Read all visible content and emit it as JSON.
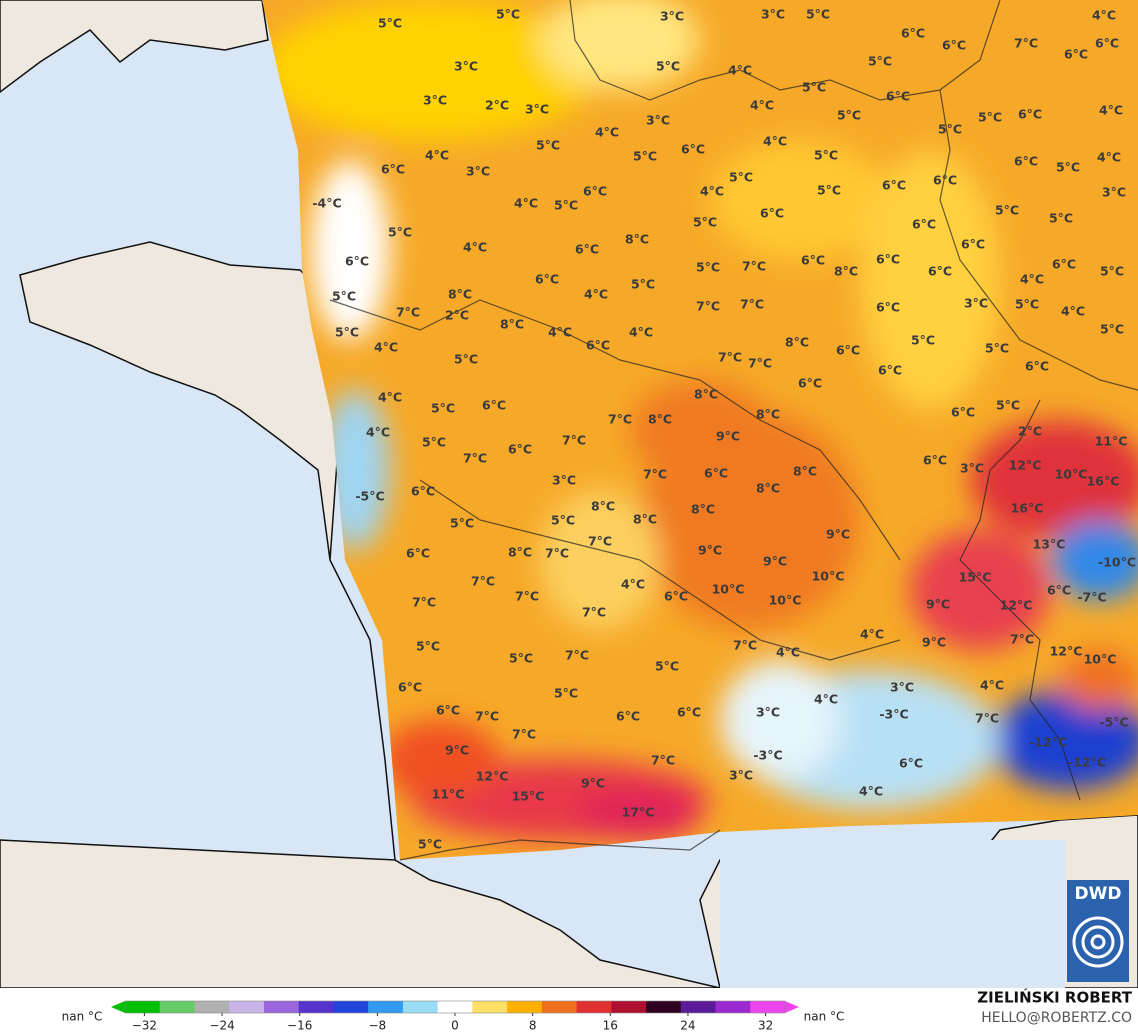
{
  "map": {
    "labels": [
      "5°C",
      "5°C",
      "3°C",
      "3°C",
      "2°C",
      "3°C",
      "6°C",
      "4°C",
      "3°C",
      "-4°C",
      "5°C",
      "6°C",
      "5°C",
      "5°C",
      "4°C",
      "7°C",
      "2°C",
      "8°C",
      "8°C",
      "5°C",
      "4°C",
      "4°C",
      "-5°C",
      "5°C",
      "6°C",
      "5°C",
      "7°C",
      "6°C",
      "7°C",
      "3°C",
      "6°C",
      "5°C",
      "6°C",
      "7°C",
      "5°C",
      "6°C",
      "9°C",
      "11°C",
      "12°C",
      "15°C",
      "9°C",
      "17°C",
      "5°C",
      "7°C",
      "7°C",
      "10°C",
      "10°C",
      "9°C",
      "9°C",
      "10°C",
      "9°C",
      "8°C",
      "8°C",
      "8°C",
      "9°C",
      "8°C",
      "8°C",
      "8°C",
      "7°C",
      "7°C",
      "6°C",
      "7°C",
      "7°C",
      "8°C",
      "6°C",
      "6°C",
      "6°C",
      "4°C",
      "5°C",
      "4°C",
      "6°C",
      "4°C",
      "5°C",
      "7°C",
      "7°C",
      "7°C",
      "8°C",
      "6°C",
      "6°C",
      "6°C",
      "8°C",
      "6°C",
      "6°C",
      "5°C",
      "4°C",
      "5°C",
      "6°C",
      "6°C",
      "6°C",
      "6°C",
      "3°C",
      "6°C",
      "5°C",
      "4°C",
      "6°C",
      "5°C",
      "4°C",
      "5°C",
      "5°C",
      "5°C",
      "6°C",
      "5°C",
      "6°C",
      "2°C",
      "6°C",
      "3°C",
      "12°C",
      "10°C",
      "11°C",
      "16°C",
      "16°C",
      "13°C",
      "-10°C",
      "15°C",
      "12°C",
      "6°C",
      "-7°C",
      "9°C",
      "9°C",
      "7°C",
      "12°C",
      "10°C",
      "4°C",
      "4°C",
      "3°C",
      "4°C",
      "7°C",
      "-3°C",
      "4°C",
      "-5°C",
      "-12°C",
      "-12°C",
      "6°C",
      "4°C",
      "3°C",
      "3°C",
      "-3°C",
      "6°C",
      "6°C",
      "5°C",
      "7°C",
      "7°C",
      "6°C",
      "5°C",
      "7°C",
      "5°C",
      "6°C",
      "4°C",
      "7°C",
      "7°C",
      "7°C",
      "8°C",
      "7°C",
      "7°C",
      "5°C",
      "8°C",
      "8°C",
      "6°C",
      "5°C",
      "4°C",
      "3°C",
      "5°C",
      "4°C",
      "5°C",
      "4°C",
      "5°C",
      "3°C",
      "4°C",
      "3°C",
      "5°C",
      "4°C",
      "5°C",
      "5°C",
      "5°C",
      "6°C",
      "6°C",
      "6°C",
      "7°C",
      "6°C",
      "4°C",
      "6°C",
      "5°C",
      "5°C",
      "6°C",
      "4°C",
      "6°C",
      "5°C",
      "4°C",
      "3°C",
      "5°C",
      "5°C",
      "6°C",
      "6°C",
      "5°C",
      "5°C",
      "4°C"
    ]
  },
  "legend": {
    "left_label": "nan °C",
    "right_label": "nan °C",
    "range": [
      -34,
      34
    ],
    "ticks": [
      {
        "value": -32,
        "label": "−32"
      },
      {
        "value": -24,
        "label": "−24"
      },
      {
        "value": -16,
        "label": "−16"
      },
      {
        "value": -8,
        "label": "−8"
      },
      0,
      8,
      16,
      24,
      32
    ],
    "colors": [
      "#00c000",
      "#66cc66",
      "#b0b0b0",
      "#c8b4e6",
      "#9966dd",
      "#5533cc",
      "#2244dd",
      "#3399ee",
      "#99ddf5",
      "#ffffff",
      "#ffe066",
      "#ffb000",
      "#f07020",
      "#e03030",
      "#b01030",
      "#300020",
      "#5a1a9a",
      "#9a2ad0",
      "#ee44ee"
    ]
  },
  "credit": {
    "name": "ZIELIŃSKI ROBERT",
    "email": "HELLO@ROBERTZ.CO"
  },
  "logo": "DWD"
}
